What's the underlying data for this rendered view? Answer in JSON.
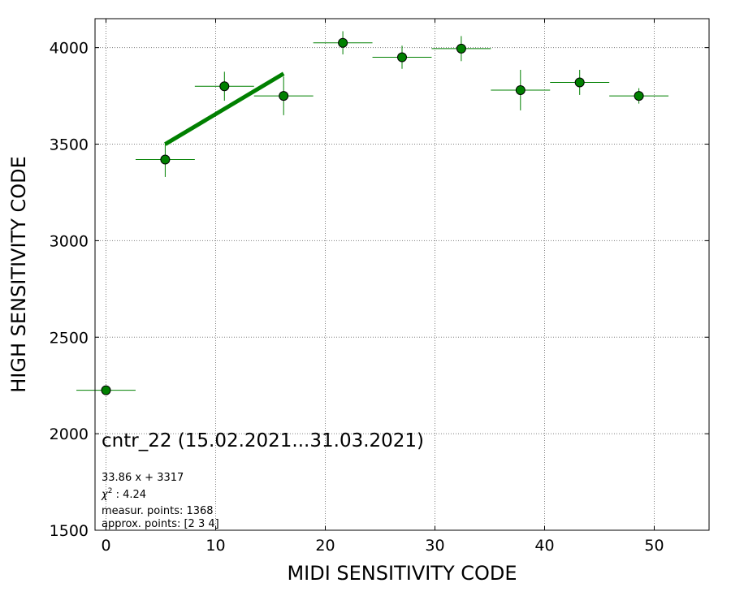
{
  "chart_data": {
    "type": "scatter",
    "title": "",
    "xlabel": "MIDI SENSITIVITY CODE",
    "ylabel": "HIGH SENSITIVITY CODE",
    "xlim": [
      -1,
      55
    ],
    "ylim": [
      1500,
      4150
    ],
    "xticks": [
      0,
      10,
      20,
      30,
      40,
      50
    ],
    "yticks": [
      1500,
      2000,
      2500,
      3000,
      3500,
      4000
    ],
    "grid": true,
    "color": "#008000",
    "marker_edge_color": "#000000",
    "points": [
      {
        "x": 0.0,
        "y": 2225,
        "xerr": 2.7,
        "yerr": 0
      },
      {
        "x": 5.4,
        "y": 3420,
        "xerr": 2.7,
        "yerr": 90
      },
      {
        "x": 10.8,
        "y": 3800,
        "xerr": 2.7,
        "yerr": 75
      },
      {
        "x": 16.2,
        "y": 3750,
        "xerr": 2.7,
        "yerr": 100
      },
      {
        "x": 21.6,
        "y": 4025,
        "xerr": 2.7,
        "yerr": 60
      },
      {
        "x": 27.0,
        "y": 3950,
        "xerr": 2.7,
        "yerr": 60
      },
      {
        "x": 32.4,
        "y": 3995,
        "xerr": 2.7,
        "yerr": 65
      },
      {
        "x": 37.8,
        "y": 3780,
        "xerr": 2.7,
        "yerr": 105
      },
      {
        "x": 43.2,
        "y": 3820,
        "xerr": 2.7,
        "yerr": 65
      },
      {
        "x": 48.6,
        "y": 3750,
        "xerr": 2.7,
        "yerr": 40
      }
    ],
    "fit_line": {
      "slope": 33.86,
      "intercept": 3317,
      "x_range": [
        5.4,
        16.2
      ]
    },
    "annotations": {
      "series_title": "cntr_22 (15.02.2021...31.03.2021)",
      "equation": "33.86 x + 3317",
      "chi2_value": "4.24",
      "measur_points": "measur. points: 1368",
      "approx_points": "approx. points: [2 3 4]"
    }
  }
}
